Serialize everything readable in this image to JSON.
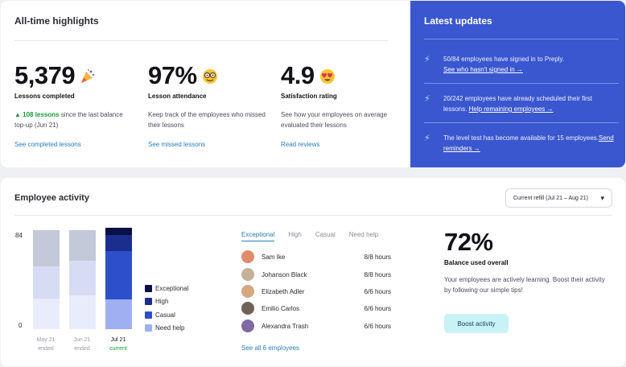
{
  "highlights": {
    "title": "All-time highlights",
    "metrics": [
      {
        "value": "5,379",
        "emoji": "party-popper-icon",
        "label": "Lessons completed",
        "desc_highlight": "▲ 108 lessons",
        "desc": " since the last balance top-up (Jun 21)",
        "link": "See completed lessons"
      },
      {
        "value": "97%",
        "emoji": "nerd-face-icon",
        "label": "Lesson attendance",
        "desc_highlight": "",
        "desc": "Keep track of the employees who missed their lessons",
        "link": "See missed lessons"
      },
      {
        "value": "4.9",
        "emoji": "heart-eyes-icon",
        "label": "Satisfaction rating",
        "desc_highlight": "",
        "desc": "See how your employees on average evaluated their lessons",
        "link": "Read reviews"
      }
    ]
  },
  "updates": {
    "title": "Latest updates",
    "items": [
      {
        "text": "50/84 employees have signed in to Preply.",
        "link": "See who hasn't signed in →"
      },
      {
        "text": "20/242 employees have already scheduled their first lessons.",
        "link": "Help remaining employees →"
      },
      {
        "text": "The level test has become available for 15 employees.",
        "link": "Send reminders →"
      }
    ]
  },
  "activity": {
    "title": "Employee activity",
    "refill_label": "Current refill (Jul 21 – Aug 21)",
    "chevron": "▾",
    "y_axis": {
      "max_label": "84",
      "min_label": "0"
    },
    "legend": [
      {
        "label": "Exceptional",
        "color": "#0a0f45"
      },
      {
        "label": "High",
        "color": "#1b2e8f"
      },
      {
        "label": "Casual",
        "color": "#2d4fc9"
      },
      {
        "label": "Need help",
        "color": "#9fb0f2"
      }
    ],
    "tabs": [
      "Exceptional",
      "High",
      "Casual",
      "Need help"
    ],
    "active_tab": 0,
    "employees": [
      {
        "name": "Sam Ike",
        "hours": "8/8 hours",
        "color": "#e08a6a"
      },
      {
        "name": "Johanson Black",
        "hours": "8/8 hours",
        "color": "#c7b09a"
      },
      {
        "name": "Elizabeth Adler",
        "hours": "6/6 hours",
        "color": "#d7a77f"
      },
      {
        "name": "Emilio Carlos",
        "hours": "6/6 hours",
        "color": "#6f6155"
      },
      {
        "name": "Alexandra Trash",
        "hours": "6/6 hours",
        "color": "#7f6aa3"
      }
    ],
    "see_all": "See all 6 employees",
    "balance": {
      "value": "72%",
      "label": "Balance used overall",
      "desc": "Your employees are actively learning. Boost their activity by following our simple tips!",
      "button": "Boost activity"
    }
  },
  "chart_data": {
    "type": "bar",
    "stacked": true,
    "categories": [
      "May 21",
      "Jun 21",
      "Jul 21"
    ],
    "category_status": [
      "ended",
      "ended",
      "current"
    ],
    "ylim": [
      0,
      84
    ],
    "series": [
      {
        "name": "Need help",
        "values": [
          26,
          29,
          25
        ],
        "colors": [
          "#e9ecfa",
          "#e9ecfa",
          "#9fb0f2"
        ]
      },
      {
        "name": "Casual",
        "values": [
          27,
          29,
          41
        ],
        "colors": [
          "#d6dcf4",
          "#d6dcf4",
          "#2d4fc9"
        ]
      },
      {
        "name": "High",
        "values": [
          31,
          26,
          14
        ],
        "colors": [
          "#c4c9d9",
          "#c4c9d9",
          "#1b2e8f"
        ]
      },
      {
        "name": "Exceptional",
        "values": [
          0,
          0,
          6
        ],
        "colors": [
          "#b0b6c8",
          "#b0b6c8",
          "#0a0f45"
        ]
      }
    ]
  }
}
